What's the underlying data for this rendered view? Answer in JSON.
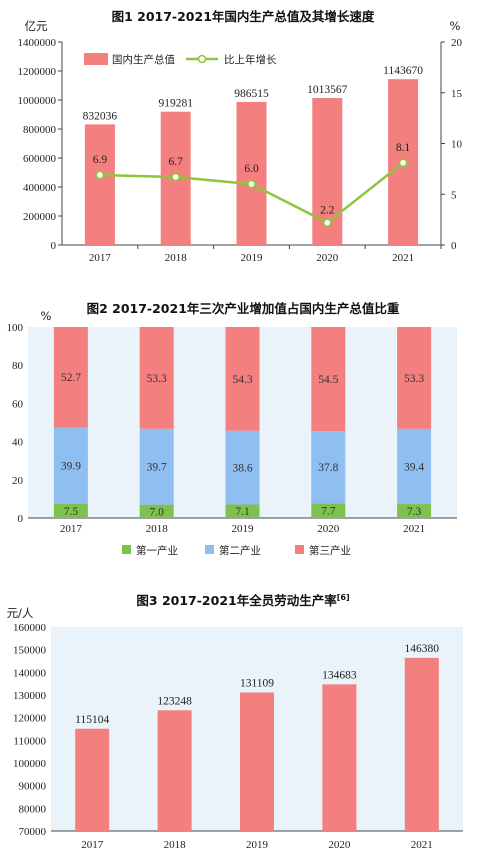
{
  "colors": {
    "gdp_bar": "#f47f7f",
    "growth_line": "#8cc63e",
    "primary": "#7ec24e",
    "secondary": "#8fbef0",
    "tertiary": "#f47f7f",
    "productivity_bar": "#f47f7f",
    "axis": "#444444",
    "plot_bg": "#eaf2fa"
  },
  "chart_data": [
    {
      "type": "bar",
      "title": "图1   2017-2021年国内生产总值及其增长速度",
      "categories": [
        "2017",
        "2018",
        "2019",
        "2020",
        "2021"
      ],
      "series": [
        {
          "name": "国内生产总值",
          "values": [
            832036,
            919281,
            986515,
            1013567,
            1143670
          ],
          "axis": "left",
          "kind": "bar"
        },
        {
          "name": "比上年增长",
          "values": [
            6.9,
            6.7,
            6.0,
            2.2,
            8.1
          ],
          "axis": "right",
          "kind": "line"
        }
      ],
      "ylabel": "亿元",
      "ylabel_right": "%",
      "ylim": [
        0,
        1400000
      ],
      "ylim_right": [
        0,
        20
      ],
      "yticks": [
        "0",
        "200000",
        "400000",
        "600000",
        "800000",
        "1000000",
        "1200000",
        "1400000"
      ],
      "yticks_right": [
        "0",
        "5",
        "10",
        "15",
        "20"
      ],
      "legend_position": "top-left"
    },
    {
      "type": "bar",
      "stacked": true,
      "title": "图2   2017-2021年三次产业增加值占国内生产总值比重",
      "categories": [
        "2017",
        "2018",
        "2019",
        "2020",
        "2021"
      ],
      "series": [
        {
          "name": "第一产业",
          "values": [
            7.5,
            7.0,
            7.1,
            7.7,
            7.3
          ]
        },
        {
          "name": "第二产业",
          "values": [
            39.9,
            39.7,
            38.6,
            37.8,
            39.4
          ]
        },
        {
          "name": "第三产业",
          "values": [
            52.7,
            53.3,
            54.3,
            54.5,
            53.3
          ]
        }
      ],
      "ylabel": "%",
      "ylim": [
        0,
        100
      ],
      "yticks": [
        "0",
        "20",
        "40",
        "60",
        "80",
        "100"
      ],
      "legend_position": "bottom"
    },
    {
      "type": "bar",
      "title": "图3   2017-2021年全员劳动生产率",
      "title_sup": "[6]",
      "categories": [
        "2017",
        "2018",
        "2019",
        "2020",
        "2021"
      ],
      "values": [
        115104,
        123248,
        131109,
        134683,
        146380
      ],
      "ylabel": "元/人",
      "ylim": [
        70000,
        160000
      ],
      "yticks": [
        "70000",
        "80000",
        "90000",
        "100000",
        "110000",
        "120000",
        "130000",
        "140000",
        "150000",
        "160000"
      ]
    }
  ]
}
